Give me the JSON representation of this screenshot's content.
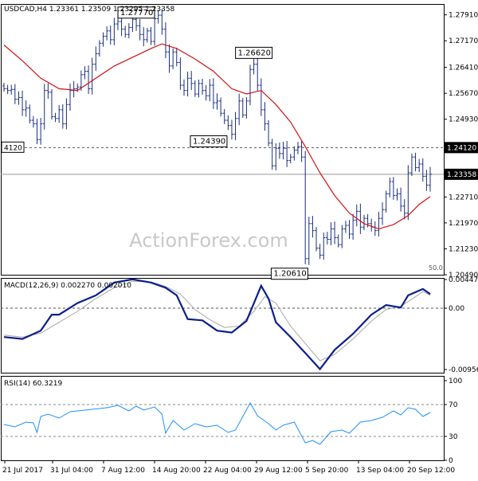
{
  "chart_data": [
    {
      "type": "candlestick",
      "title": "USDCAD,H4",
      "ohlc_readout": "1.23361 1.23509 1.23295 1.23358",
      "watermark": "ActionForex.com",
      "ylim": [
        1.2049,
        1.2822
      ],
      "y_ticks": [
        "1.27910",
        "1.27170",
        "1.26410",
        "1.25670",
        "1.24930",
        "1.24120",
        "1.23358",
        "1.22710",
        "1.21970",
        "1.21230",
        "1.20490"
      ],
      "x_ticks": [
        "21 Jul 2017",
        "31 Jul 04:00",
        "7 Aug 12:00",
        "14 Aug 20:00",
        "22 Aug 04:00",
        "29 Aug 12:00",
        "5 Sep 20:00",
        "13 Sep 04:00",
        "20 Sep 12:00"
      ],
      "current_price": "1.23358",
      "horizontal_level": {
        "label": "1.24120",
        "left_label": "4120",
        "value": 1.2412
      },
      "fib_label": "50.0",
      "annotations": [
        {
          "text": "1.27770",
          "x": 36,
          "y": 1.2777
        },
        {
          "text": "1.26620",
          "x": 68,
          "y": 1.2662
        },
        {
          "text": "1.24390",
          "x": 62,
          "y": 1.2439
        },
        {
          "text": "1.20610",
          "x": 84,
          "y": 1.2061
        }
      ],
      "close_path": [
        [
          0,
          1.258
        ],
        [
          1,
          1.2575
        ],
        [
          2,
          1.2578
        ],
        [
          3,
          1.255
        ],
        [
          4,
          1.2555
        ],
        [
          5,
          1.252
        ],
        [
          6,
          1.2525
        ],
        [
          7,
          1.249
        ],
        [
          8,
          1.248
        ],
        [
          9,
          1.2435
        ],
        [
          10,
          1.248
        ],
        [
          11,
          1.2575
        ],
        [
          12,
          1.257
        ],
        [
          13,
          1.25
        ],
        [
          14,
          1.2495
        ],
        [
          15,
          1.252
        ],
        [
          16,
          1.248
        ],
        [
          17,
          1.2535
        ],
        [
          18,
          1.2575
        ],
        [
          19,
          1.258
        ],
        [
          20,
          1.2585
        ],
        [
          21,
          1.262
        ],
        [
          22,
          1.263
        ],
        [
          23,
          1.258
        ],
        [
          24,
          1.265
        ],
        [
          25,
          1.268
        ],
        [
          26,
          1.271
        ],
        [
          27,
          1.273
        ],
        [
          28,
          1.2745
        ],
        [
          29,
          1.272
        ],
        [
          30,
          1.2765
        ],
        [
          31,
          1.2772
        ],
        [
          32,
          1.275
        ],
        [
          33,
          1.2735
        ],
        [
          34,
          1.2755
        ],
        [
          35,
          1.2778
        ],
        [
          36,
          1.276
        ],
        [
          37,
          1.2735
        ],
        [
          38,
          1.272
        ],
        [
          39,
          1.2745
        ],
        [
          40,
          1.2715
        ],
        [
          41,
          1.278
        ],
        [
          42,
          1.279
        ],
        [
          43,
          1.275
        ],
        [
          44,
          1.2685
        ],
        [
          45,
          1.2645
        ],
        [
          46,
          1.2685
        ],
        [
          47,
          1.2655
        ],
        [
          48,
          1.259
        ],
        [
          49,
          1.2575
        ],
        [
          50,
          1.261
        ],
        [
          51,
          1.2595
        ],
        [
          52,
          1.2565
        ],
        [
          53,
          1.2595
        ],
        [
          54,
          1.2575
        ],
        [
          55,
          1.256
        ],
        [
          56,
          1.259
        ],
        [
          57,
          1.254
        ],
        [
          58,
          1.2545
        ],
        [
          59,
          1.251
        ],
        [
          60,
          1.249
        ],
        [
          61,
          1.2475
        ],
        [
          62,
          1.245
        ],
        [
          63,
          1.2495
        ],
        [
          64,
          1.2545
        ],
        [
          65,
          1.2505
        ],
        [
          66,
          1.2545
        ],
        [
          67,
          1.2635
        ],
        [
          68,
          1.265
        ],
        [
          69,
          1.259
        ],
        [
          70,
          1.252
        ],
        [
          71,
          1.248
        ],
        [
          72,
          1.2425
        ],
        [
          73,
          1.236
        ],
        [
          74,
          1.241
        ],
        [
          75,
          1.2395
        ],
        [
          76,
          1.241
        ],
        [
          77,
          1.2375
        ],
        [
          78,
          1.2385
        ],
        [
          79,
          1.2405
        ],
        [
          80,
          1.2415
        ],
        [
          81,
          1.2385
        ],
        [
          82,
          1.2095
        ],
        [
          83,
          1.2195
        ],
        [
          84,
          1.2175
        ],
        [
          85,
          1.2125
        ],
        [
          86,
          1.2105
        ],
        [
          87,
          1.2155
        ],
        [
          88,
          1.215
        ],
        [
          89,
          1.218
        ],
        [
          90,
          1.2155
        ],
        [
          91,
          1.2135
        ],
        [
          92,
          1.218
        ],
        [
          93,
          1.219
        ],
        [
          94,
          1.2165
        ],
        [
          95,
          1.2205
        ],
        [
          96,
          1.223
        ],
        [
          97,
          1.2185
        ],
        [
          98,
          1.221
        ],
        [
          99,
          1.2195
        ],
        [
          100,
          1.2185
        ],
        [
          101,
          1.2175
        ],
        [
          102,
          1.221
        ],
        [
          103,
          1.2235
        ],
        [
          104,
          1.228
        ],
        [
          105,
          1.2315
        ],
        [
          106,
          1.2275
        ],
        [
          107,
          1.228
        ],
        [
          108,
          1.2245
        ],
        [
          109,
          1.2225
        ],
        [
          110,
          1.234
        ],
        [
          111,
          1.2385
        ],
        [
          112,
          1.2355
        ],
        [
          113,
          1.2365
        ],
        [
          114,
          1.233
        ],
        [
          115,
          1.2305
        ],
        [
          116,
          1.2336
        ]
      ],
      "ma_path": [
        [
          0,
          1.2705
        ],
        [
          5,
          1.266
        ],
        [
          10,
          1.261
        ],
        [
          15,
          1.258
        ],
        [
          20,
          1.2575
        ],
        [
          25,
          1.261
        ],
        [
          30,
          1.2645
        ],
        [
          35,
          1.267
        ],
        [
          40,
          1.2695
        ],
        [
          43,
          1.2708
        ],
        [
          47,
          1.2695
        ],
        [
          52,
          1.2665
        ],
        [
          57,
          1.263
        ],
        [
          62,
          1.258
        ],
        [
          66,
          1.2565
        ],
        [
          70,
          1.2575
        ],
        [
          74,
          1.2535
        ],
        [
          78,
          1.2485
        ],
        [
          82,
          1.2415
        ],
        [
          86,
          1.234
        ],
        [
          90,
          1.2275
        ],
        [
          94,
          1.2225
        ],
        [
          98,
          1.2195
        ],
        [
          102,
          1.218
        ],
        [
          106,
          1.2192
        ],
        [
          110,
          1.2218
        ],
        [
          113,
          1.225
        ],
        [
          116,
          1.2272
        ]
      ],
      "macd": {
        "label": "MACD(12,26,9) 0.002270 0.002010",
        "ylim": [
          -0.009567,
          0.004476
        ],
        "y_ticks": [
          "0.004476",
          "0.00",
          "-0.009567"
        ],
        "main_path": [
          [
            0,
            -0.0045
          ],
          [
            5,
            -0.0048
          ],
          [
            10,
            -0.0035
          ],
          [
            13,
            -0.001
          ],
          [
            15,
            -0.001
          ],
          [
            20,
            0.0008
          ],
          [
            25,
            0.002
          ],
          [
            30,
            0.004
          ],
          [
            35,
            0.0045
          ],
          [
            40,
            0.004
          ],
          [
            44,
            0.0032
          ],
          [
            47,
            0.002
          ],
          [
            50,
            -0.0017
          ],
          [
            54,
            -0.0019
          ],
          [
            58,
            -0.0035
          ],
          [
            62,
            -0.0038
          ],
          [
            66,
            -0.002
          ],
          [
            70,
            0.0035
          ],
          [
            72,
            0.0015
          ],
          [
            74,
            -0.0022
          ],
          [
            78,
            -0.0045
          ],
          [
            82,
            -0.007
          ],
          [
            86,
            -0.0095
          ],
          [
            90,
            -0.0065
          ],
          [
            95,
            -0.004
          ],
          [
            100,
            -0.001
          ],
          [
            104,
            0.0005
          ],
          [
            108,
            0.0001
          ],
          [
            110,
            0.002
          ],
          [
            114,
            0.003
          ],
          [
            116,
            0.0022
          ]
        ],
        "signal_path": [
          [
            0,
            -0.0042
          ],
          [
            5,
            -0.0045
          ],
          [
            10,
            -0.0039
          ],
          [
            15,
            -0.0022
          ],
          [
            20,
            -0.0005
          ],
          [
            25,
            0.0015
          ],
          [
            30,
            0.0032
          ],
          [
            35,
            0.0042
          ],
          [
            40,
            0.0041
          ],
          [
            44,
            0.0034
          ],
          [
            48,
            0.0022
          ],
          [
            52,
            -0.0002
          ],
          [
            56,
            -0.0018
          ],
          [
            60,
            -0.003
          ],
          [
            64,
            -0.0028
          ],
          [
            68,
            -0.0005
          ],
          [
            71,
            0.0018
          ],
          [
            74,
            0.0008
          ],
          [
            78,
            -0.0028
          ],
          [
            82,
            -0.0055
          ],
          [
            86,
            -0.0082
          ],
          [
            90,
            -0.0072
          ],
          [
            95,
            -0.0048
          ],
          [
            100,
            -0.002
          ],
          [
            104,
            -0.0002
          ],
          [
            108,
            0.0003
          ],
          [
            111,
            0.0014
          ],
          [
            114,
            0.0026
          ],
          [
            116,
            0.002
          ]
        ]
      },
      "rsi": {
        "label": "RSI(14) 60.3219",
        "ylim": [
          0,
          100
        ],
        "y_ticks": [
          "100",
          "70",
          "30",
          "0"
        ],
        "path": [
          [
            0,
            45
          ],
          [
            3,
            42
          ],
          [
            6,
            48
          ],
          [
            8,
            47
          ],
          [
            9,
            35
          ],
          [
            10,
            55
          ],
          [
            12,
            58
          ],
          [
            15,
            53
          ],
          [
            18,
            61
          ],
          [
            20,
            62
          ],
          [
            24,
            64
          ],
          [
            28,
            66
          ],
          [
            31,
            69
          ],
          [
            34,
            62
          ],
          [
            36,
            68
          ],
          [
            38,
            63
          ],
          [
            41,
            67
          ],
          [
            43,
            58
          ],
          [
            44,
            34
          ],
          [
            46,
            50
          ],
          [
            49,
            38
          ],
          [
            52,
            46
          ],
          [
            55,
            42
          ],
          [
            58,
            44
          ],
          [
            61,
            35
          ],
          [
            63,
            38
          ],
          [
            65,
            55
          ],
          [
            67,
            72
          ],
          [
            69,
            56
          ],
          [
            72,
            46
          ],
          [
            74,
            38
          ],
          [
            76,
            44
          ],
          [
            79,
            48
          ],
          [
            82,
            22
          ],
          [
            84,
            25
          ],
          [
            86,
            20
          ],
          [
            89,
            36
          ],
          [
            92,
            38
          ],
          [
            94,
            34
          ],
          [
            97,
            48
          ],
          [
            100,
            50
          ],
          [
            103,
            54
          ],
          [
            106,
            62
          ],
          [
            108,
            57
          ],
          [
            110,
            66
          ],
          [
            112,
            64
          ],
          [
            114,
            55
          ],
          [
            116,
            60
          ]
        ]
      }
    }
  ]
}
